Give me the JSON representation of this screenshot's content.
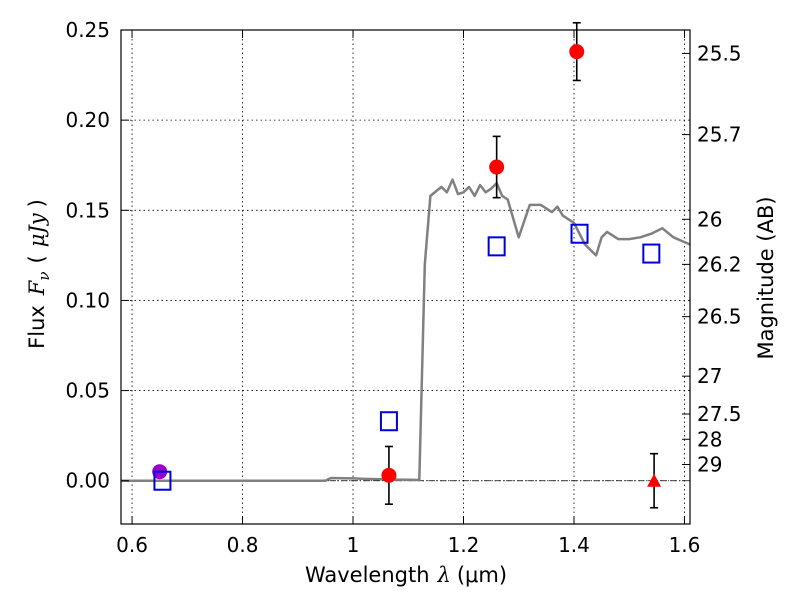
{
  "chart_data": {
    "type": "scatter",
    "title": "",
    "xlabel": {
      "text": "Wavelength",
      "symbol": "λ",
      "unit": "(μm)"
    },
    "ylabel": {
      "text": "Flux",
      "symbol": "F",
      "subscript": "ν",
      "unit": "μJy",
      "open": "(",
      "close": ")"
    },
    "ylabel_right": "Magnitude (AB)",
    "xlim": [
      0.58,
      1.61
    ],
    "ylim": [
      -0.024,
      0.25
    ],
    "grid": true,
    "x_ticks": [
      {
        "value": 0.6,
        "label": "0.6"
      },
      {
        "value": 0.8,
        "label": "0.8"
      },
      {
        "value": 1.0,
        "label": "1"
      },
      {
        "value": 1.2,
        "label": "1.2"
      },
      {
        "value": 1.4,
        "label": "1.4"
      },
      {
        "value": 1.6,
        "label": "1.6"
      }
    ],
    "y_ticks": [
      {
        "value": 0.0,
        "label": "0.00"
      },
      {
        "value": 0.05,
        "label": "0.05"
      },
      {
        "value": 0.1,
        "label": "0.10"
      },
      {
        "value": 0.15,
        "label": "0.15"
      },
      {
        "value": 0.2,
        "label": "0.20"
      },
      {
        "value": 0.25,
        "label": "0.25"
      }
    ],
    "right_ticks": [
      {
        "flux": 0.237,
        "label": "25.5"
      },
      {
        "flux": 0.192,
        "label": "25.7"
      },
      {
        "flux": 0.145,
        "label": "26"
      },
      {
        "flux": 0.12,
        "label": "26.2"
      },
      {
        "flux": 0.091,
        "label": "26.5"
      },
      {
        "flux": 0.058,
        "label": "27"
      },
      {
        "flux": 0.037,
        "label": "27.5"
      },
      {
        "flux": 0.023,
        "label": "28"
      },
      {
        "flux": 0.009,
        "label": "29"
      }
    ],
    "model_sed": {
      "color": "#808080",
      "x": [
        0.58,
        0.95,
        0.96,
        0.98,
        1.0,
        1.02,
        1.05,
        1.08,
        1.1,
        1.12,
        1.13,
        1.14,
        1.16,
        1.17,
        1.18,
        1.19,
        1.2,
        1.21,
        1.22,
        1.23,
        1.24,
        1.25,
        1.26,
        1.27,
        1.28,
        1.3,
        1.32,
        1.34,
        1.36,
        1.37,
        1.38,
        1.39,
        1.4,
        1.42,
        1.44,
        1.45,
        1.46,
        1.48,
        1.5,
        1.52,
        1.54,
        1.56,
        1.58,
        1.61
      ],
      "y": [
        0.0,
        0.0,
        0.0015,
        0.0014,
        0.0013,
        0.001,
        0.0008,
        0.0006,
        0.0005,
        0.0004,
        0.12,
        0.158,
        0.163,
        0.16,
        0.167,
        0.159,
        0.16,
        0.163,
        0.158,
        0.164,
        0.16,
        0.162,
        0.165,
        0.158,
        0.156,
        0.135,
        0.153,
        0.153,
        0.149,
        0.152,
        0.147,
        0.145,
        0.143,
        0.131,
        0.125,
        0.135,
        0.138,
        0.134,
        0.134,
        0.135,
        0.137,
        0.14,
        0.135,
        0.131
      ]
    },
    "zero_line": {
      "y": 0.0,
      "style": "dashdot",
      "color": "#000000"
    },
    "series": [
      {
        "marker": "circle",
        "color": "#ff0000",
        "points": [
          {
            "x": 1.065,
            "y": 0.003,
            "err": 0.016
          },
          {
            "x": 1.26,
            "y": 0.174,
            "err": 0.017
          },
          {
            "x": 1.405,
            "y": 0.238,
            "err": 0.016
          }
        ]
      },
      {
        "marker": "circle",
        "color": "#9900cc",
        "points": [
          {
            "x": 0.65,
            "y": 0.005,
            "err": 0.003
          }
        ]
      },
      {
        "marker": "triangle",
        "color": "#ff0000",
        "points": [
          {
            "x": 1.545,
            "y": 0.0,
            "err": 0.015
          }
        ]
      },
      {
        "marker": "square-open",
        "color": "#0000dd",
        "points": [
          {
            "x": 0.655,
            "y": 0.0,
            "err": 0
          },
          {
            "x": 1.065,
            "y": 0.033,
            "err": 0
          },
          {
            "x": 1.26,
            "y": 0.13,
            "err": 0
          },
          {
            "x": 1.41,
            "y": 0.137,
            "err": 0
          },
          {
            "x": 1.54,
            "y": 0.126,
            "err": 0
          }
        ]
      }
    ]
  }
}
